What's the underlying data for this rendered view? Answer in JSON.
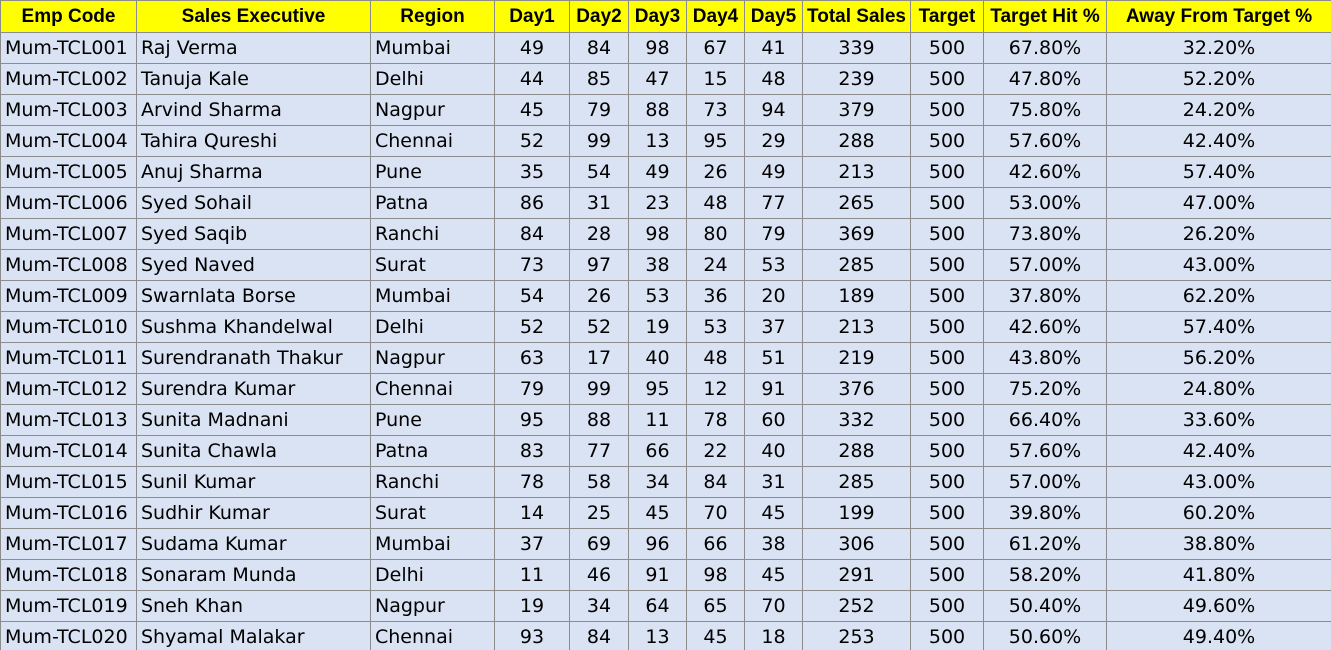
{
  "columns": [
    "Emp Code",
    "Sales Executive",
    "Region",
    "Day1",
    "Day2",
    "Day3",
    "Day4",
    "Day5",
    "Total Sales",
    "Target",
    "Target Hit %",
    "Away From Target %"
  ],
  "colors": {
    "header_bg": "#ffff00",
    "cell_bg": "#dae3f3",
    "border": "#8c8c8c"
  },
  "rows": [
    [
      "Mum-TCL001",
      "Raj Verma",
      "Mumbai",
      "49",
      "84",
      "98",
      "67",
      "41",
      "339",
      "500",
      "67.80%",
      "32.20%"
    ],
    [
      "Mum-TCL002",
      "Tanuja Kale",
      "Delhi",
      "44",
      "85",
      "47",
      "15",
      "48",
      "239",
      "500",
      "47.80%",
      "52.20%"
    ],
    [
      "Mum-TCL003",
      "Arvind Sharma",
      "Nagpur",
      "45",
      "79",
      "88",
      "73",
      "94",
      "379",
      "500",
      "75.80%",
      "24.20%"
    ],
    [
      "Mum-TCL004",
      "Tahira Qureshi",
      "Chennai",
      "52",
      "99",
      "13",
      "95",
      "29",
      "288",
      "500",
      "57.60%",
      "42.40%"
    ],
    [
      "Mum-TCL005",
      "Anuj Sharma",
      "Pune",
      "35",
      "54",
      "49",
      "26",
      "49",
      "213",
      "500",
      "42.60%",
      "57.40%"
    ],
    [
      "Mum-TCL006",
      "Syed Sohail",
      "Patna",
      "86",
      "31",
      "23",
      "48",
      "77",
      "265",
      "500",
      "53.00%",
      "47.00%"
    ],
    [
      "Mum-TCL007",
      "Syed Saqib",
      "Ranchi",
      "84",
      "28",
      "98",
      "80",
      "79",
      "369",
      "500",
      "73.80%",
      "26.20%"
    ],
    [
      "Mum-TCL008",
      "Syed Naved",
      "Surat",
      "73",
      "97",
      "38",
      "24",
      "53",
      "285",
      "500",
      "57.00%",
      "43.00%"
    ],
    [
      "Mum-TCL009",
      "Swarnlata Borse",
      "Mumbai",
      "54",
      "26",
      "53",
      "36",
      "20",
      "189",
      "500",
      "37.80%",
      "62.20%"
    ],
    [
      "Mum-TCL010",
      "Sushma Khandelwal",
      "Delhi",
      "52",
      "52",
      "19",
      "53",
      "37",
      "213",
      "500",
      "42.60%",
      "57.40%"
    ],
    [
      "Mum-TCL011",
      "Surendranath Thakur",
      "Nagpur",
      "63",
      "17",
      "40",
      "48",
      "51",
      "219",
      "500",
      "43.80%",
      "56.20%"
    ],
    [
      "Mum-TCL012",
      "Surendra Kumar",
      "Chennai",
      "79",
      "99",
      "95",
      "12",
      "91",
      "376",
      "500",
      "75.20%",
      "24.80%"
    ],
    [
      "Mum-TCL013",
      "Sunita Madnani",
      "Pune",
      "95",
      "88",
      "11",
      "78",
      "60",
      "332",
      "500",
      "66.40%",
      "33.60%"
    ],
    [
      "Mum-TCL014",
      "Sunita Chawla",
      "Patna",
      "83",
      "77",
      "66",
      "22",
      "40",
      "288",
      "500",
      "57.60%",
      "42.40%"
    ],
    [
      "Mum-TCL015",
      "Sunil Kumar",
      "Ranchi",
      "78",
      "58",
      "34",
      "84",
      "31",
      "285",
      "500",
      "57.00%",
      "43.00%"
    ],
    [
      "Mum-TCL016",
      "Sudhir Kumar",
      "Surat",
      "14",
      "25",
      "45",
      "70",
      "45",
      "199",
      "500",
      "39.80%",
      "60.20%"
    ],
    [
      "Mum-TCL017",
      "Sudama Kumar",
      "Mumbai",
      "37",
      "69",
      "96",
      "66",
      "38",
      "306",
      "500",
      "61.20%",
      "38.80%"
    ],
    [
      "Mum-TCL018",
      "Sonaram Munda",
      "Delhi",
      "11",
      "46",
      "91",
      "98",
      "45",
      "291",
      "500",
      "58.20%",
      "41.80%"
    ],
    [
      "Mum-TCL019",
      "Sneh Khan",
      "Nagpur",
      "19",
      "34",
      "64",
      "65",
      "70",
      "252",
      "500",
      "50.40%",
      "49.60%"
    ],
    [
      "Mum-TCL020",
      "Shyamal Malakar",
      "Chennai",
      "93",
      "84",
      "13",
      "45",
      "18",
      "253",
      "500",
      "50.60%",
      "49.40%"
    ]
  ]
}
